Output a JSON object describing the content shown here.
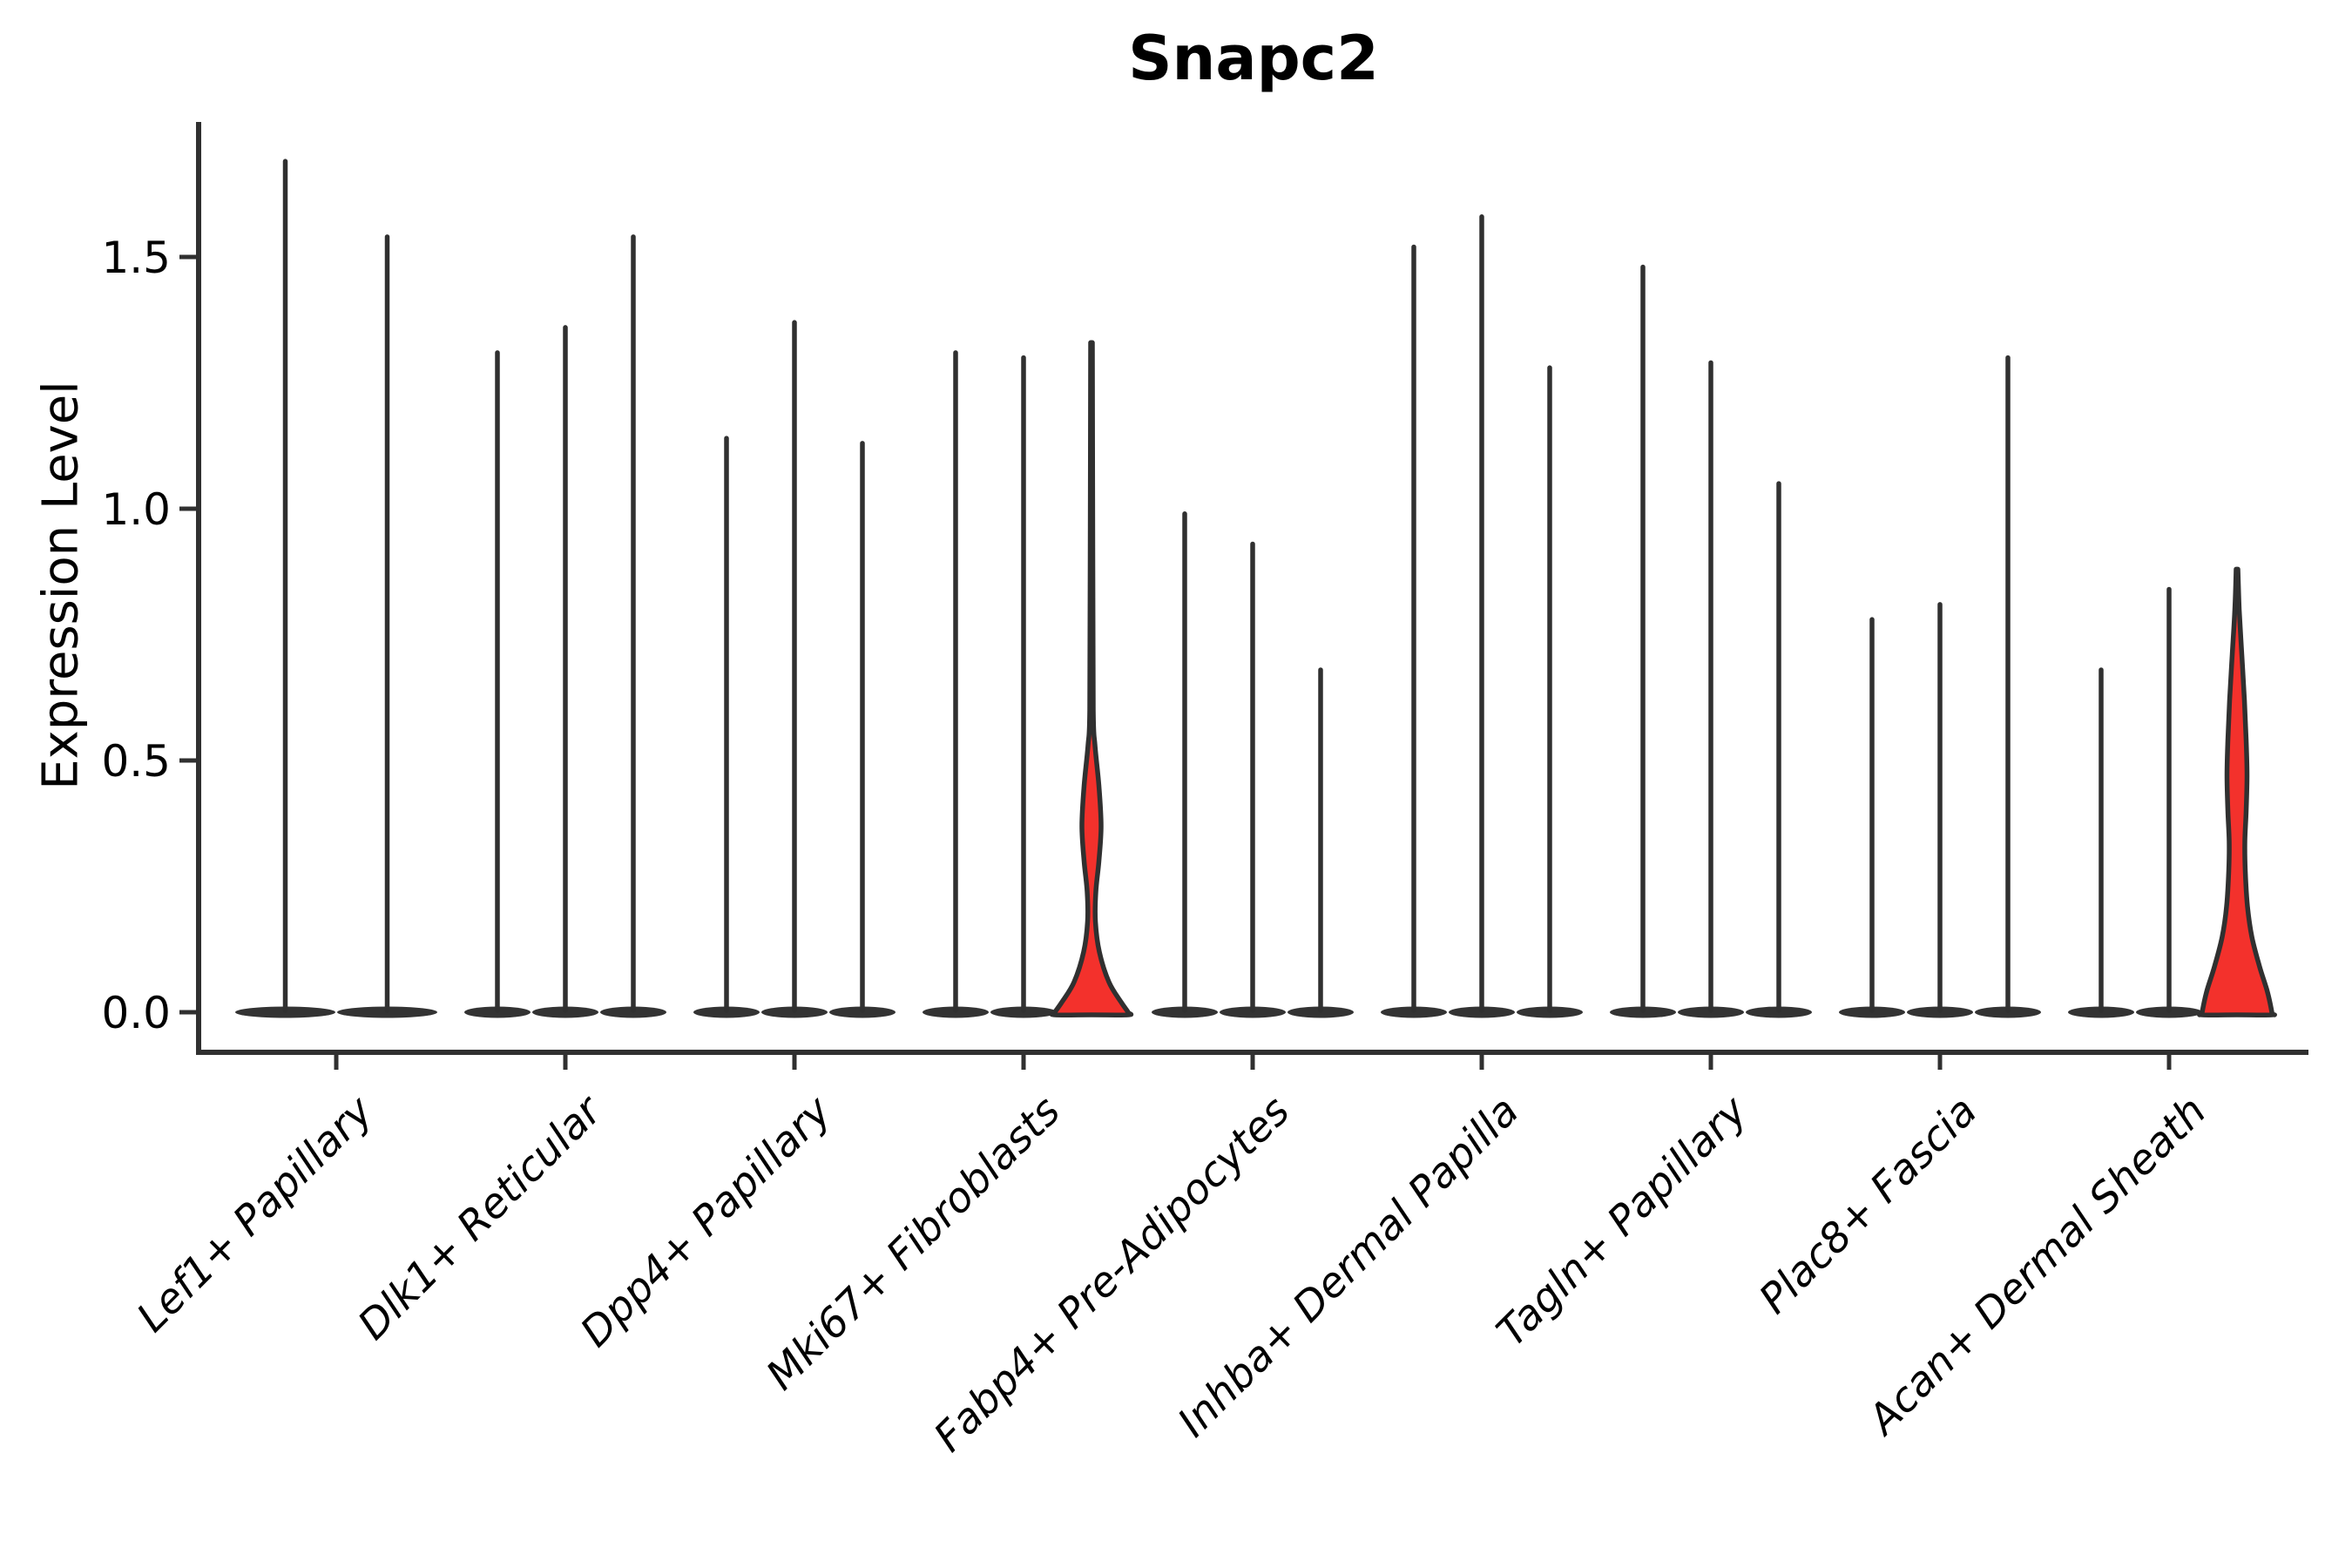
{
  "title": "Snapc2",
  "y_axis": {
    "label": "Expression Level"
  },
  "chart_data": {
    "type": "violin",
    "title": "Snapc2",
    "ylabel": "Expression Level",
    "ylim": [
      -0.08,
      1.77
    ],
    "yticks": [
      0.0,
      0.5,
      1.0,
      1.5
    ],
    "ytick_labels": [
      "0.0",
      "0.5",
      "1.0",
      "1.5"
    ],
    "legend": "none",
    "grid": false,
    "categories": [
      "Lef1+ Papillary",
      "Dlk1+ Reticular",
      "Dpp4+ Papillary",
      "Mki67+ Fibroblasts",
      "Fabp4+ Pre-Adipocytes",
      "Inhba+ Dermal Papilla",
      "Tagln+ Papillary",
      "Plac8+ Fascia",
      "Acan+ Dermal Sheath"
    ],
    "colors": {
      "line": "#303030",
      "fill": "#333333",
      "highlight": "#F3312C"
    },
    "note": "Each category shows narrow violins (bulk of expression at 0 with thin spikes to max). Two violins are highlighted red with visible density bulges.",
    "groups": [
      {
        "category": "Lef1+ Papillary",
        "violins": [
          {
            "max": 1.69
          },
          {
            "max": 1.54
          }
        ]
      },
      {
        "category": "Dlk1+ Reticular",
        "violins": [
          {
            "max": 1.31
          },
          {
            "max": 1.36
          },
          {
            "max": 1.54
          }
        ]
      },
      {
        "category": "Dpp4+ Papillary",
        "violins": [
          {
            "max": 1.14
          },
          {
            "max": 1.37
          },
          {
            "max": 1.13
          }
        ]
      },
      {
        "category": "Mki67+ Fibroblasts",
        "violins": [
          {
            "max": 1.31
          },
          {
            "max": 1.3
          },
          {
            "max": 1.33,
            "highlighted": true,
            "profile": [
              [
                1.33,
                1
              ],
              [
                0.9,
                1.5
              ],
              [
                0.6,
                2
              ],
              [
                0.53,
                4
              ],
              [
                0.45,
                8.5
              ],
              [
                0.37,
                11
              ],
              [
                0.3,
                8.5
              ],
              [
                0.24,
                5
              ],
              [
                0.18,
                4.5
              ],
              [
                0.12,
                9
              ],
              [
                0.06,
                20
              ],
              [
                0.02,
                34
              ],
              [
                0.0,
                42
              ]
            ]
          }
        ]
      },
      {
        "category": "Fabp4+ Pre-Adipocytes",
        "violins": [
          {
            "max": 0.99
          },
          {
            "max": 0.93
          },
          {
            "max": 0.68
          }
        ]
      },
      {
        "category": "Inhba+ Dermal Papilla",
        "violins": [
          {
            "max": 1.52
          },
          {
            "max": 1.58
          },
          {
            "max": 1.28
          }
        ]
      },
      {
        "category": "Tagln+ Papillary",
        "violins": [
          {
            "max": 1.48
          },
          {
            "max": 1.29
          },
          {
            "max": 1.05
          }
        ]
      },
      {
        "category": "Plac8+ Fascia",
        "violins": [
          {
            "max": 0.78
          },
          {
            "max": 0.81
          },
          {
            "max": 1.3
          }
        ]
      },
      {
        "category": "Acan+ Dermal Sheath",
        "violins": [
          {
            "max": 0.68
          },
          {
            "max": 0.84
          },
          {
            "max": 0.88,
            "highlighted": true,
            "profile": [
              [
                0.88,
                1
              ],
              [
                0.8,
                2.5
              ],
              [
                0.71,
                5.5
              ],
              [
                0.62,
                8.5
              ],
              [
                0.54,
                10.5
              ],
              [
                0.47,
                11.5
              ],
              [
                0.4,
                10.5
              ],
              [
                0.34,
                9
              ],
              [
                0.28,
                9.5
              ],
              [
                0.21,
                12
              ],
              [
                0.15,
                17
              ],
              [
                0.09,
                26
              ],
              [
                0.04,
                35
              ],
              [
                0.0,
                40
              ]
            ]
          }
        ]
      }
    ]
  }
}
